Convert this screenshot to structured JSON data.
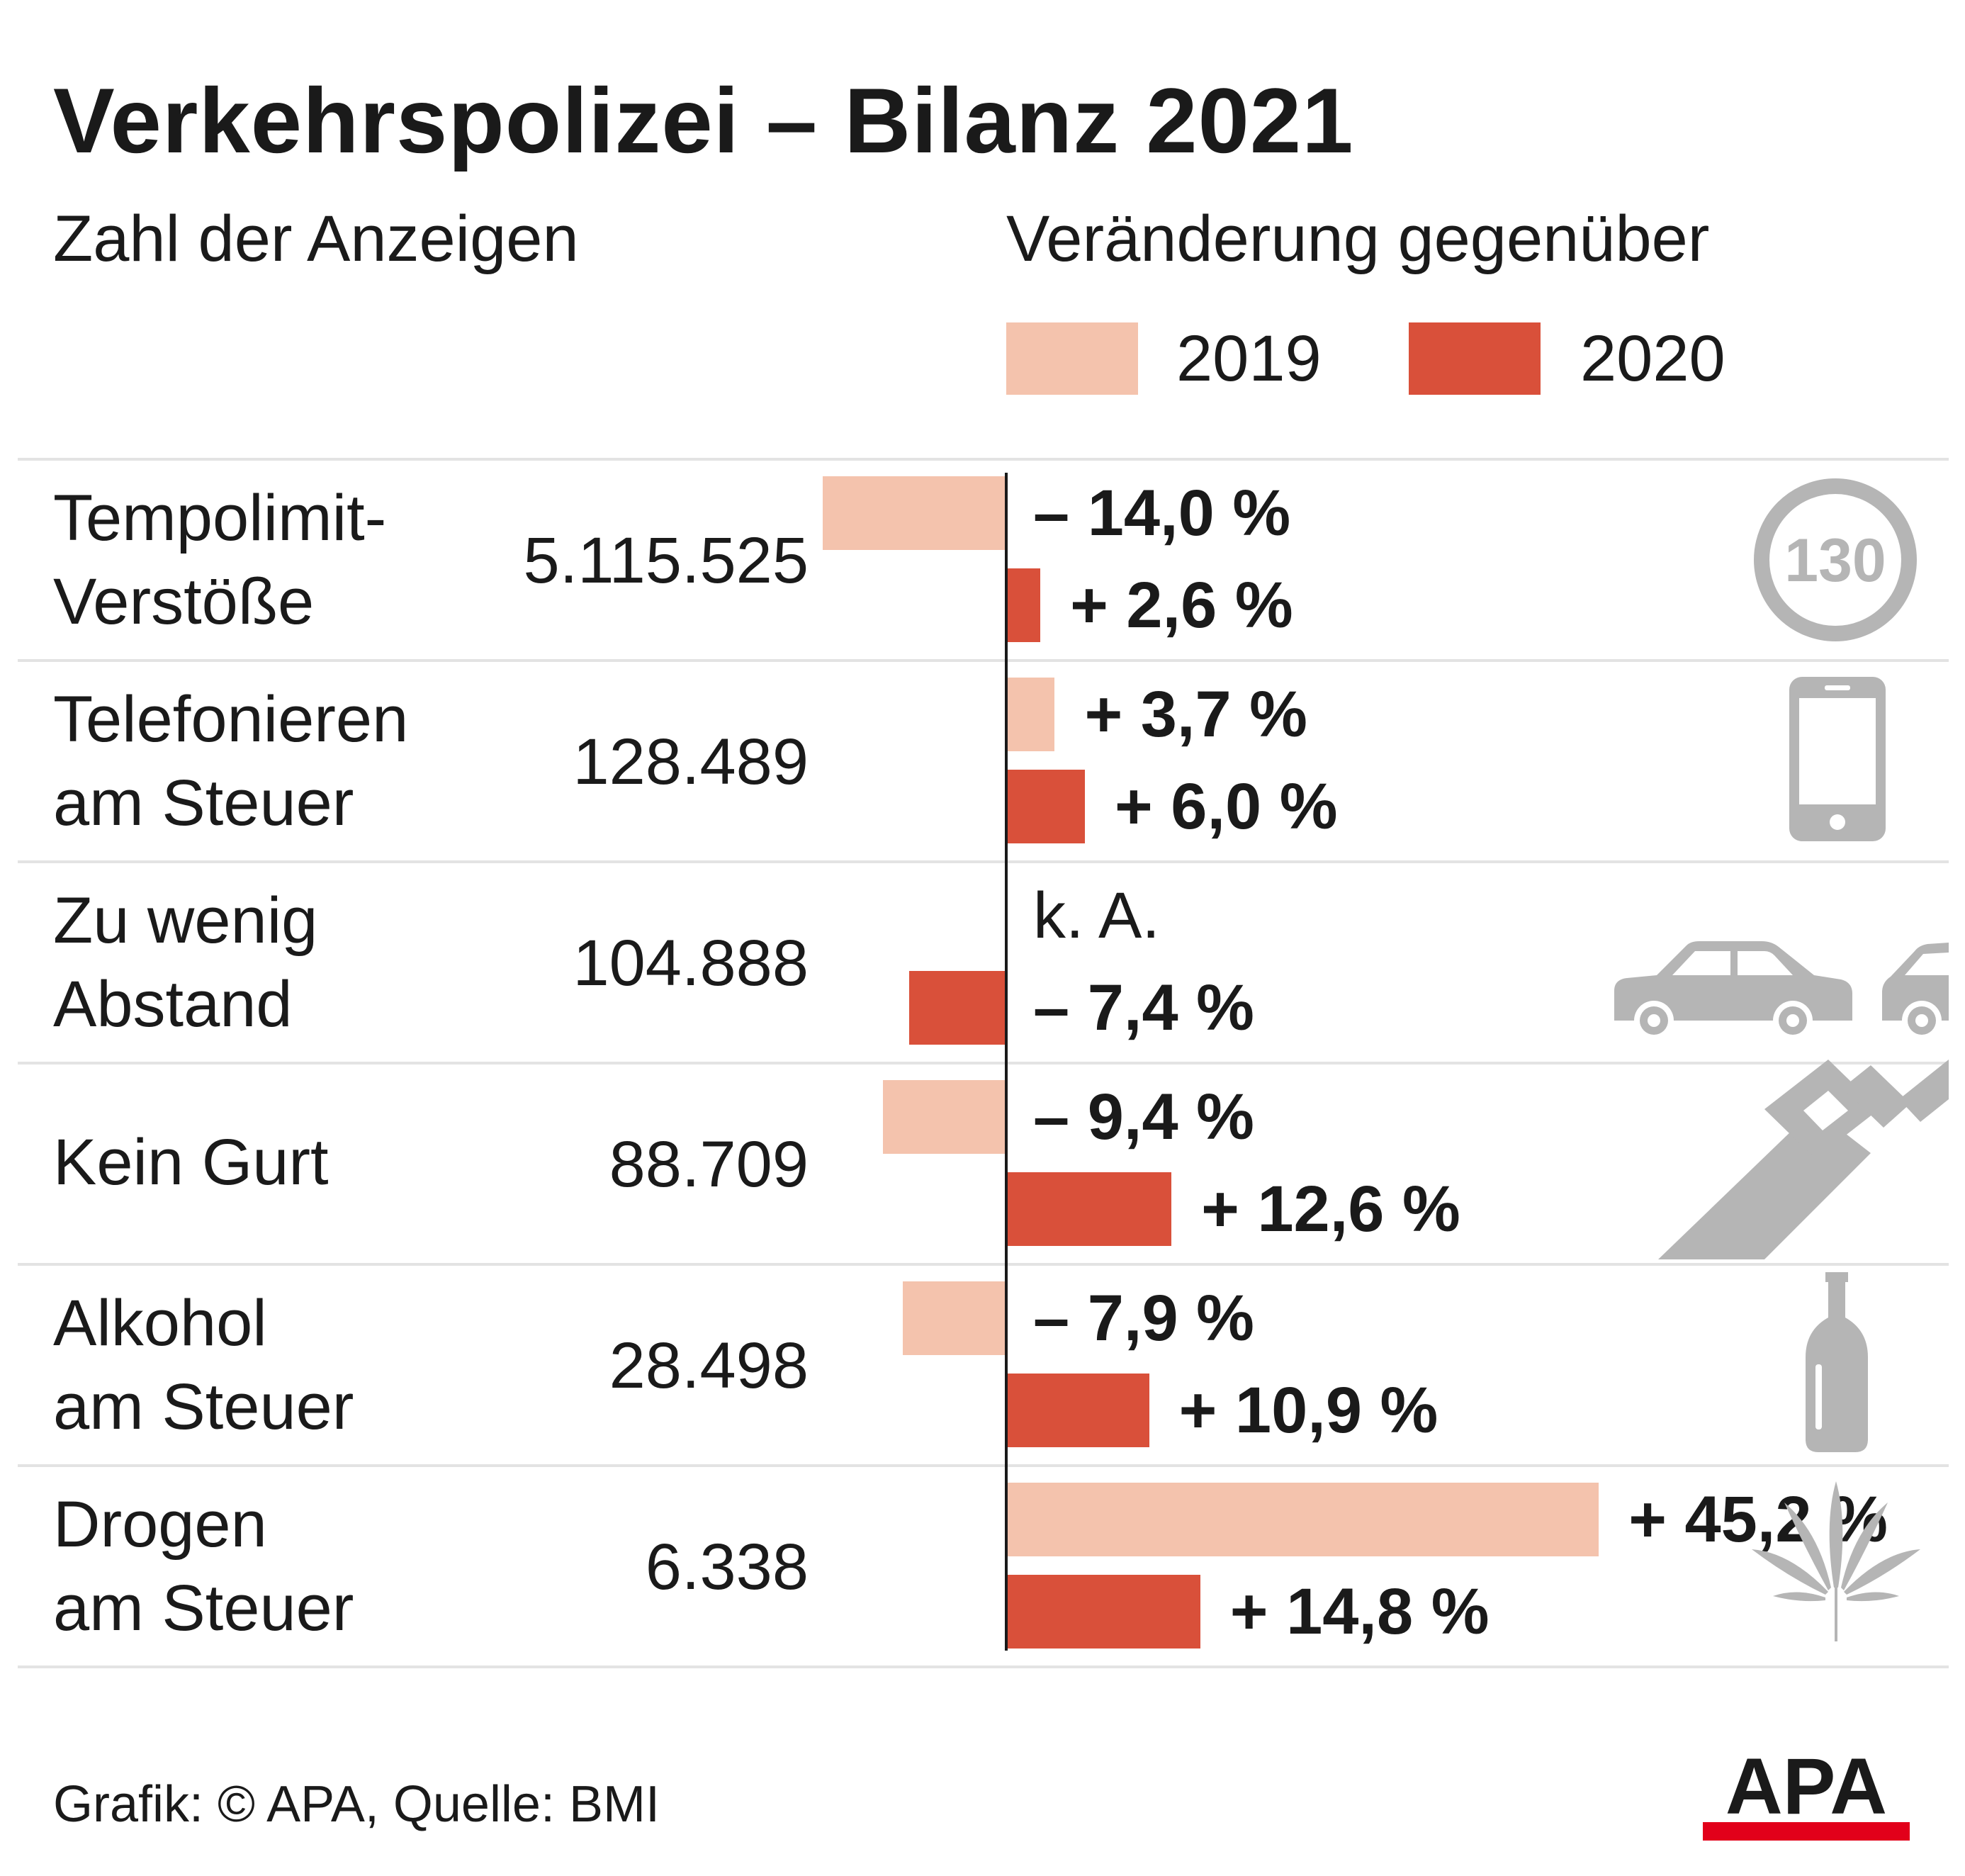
{
  "title": "Verkehrspolizei – Bilanz 2021",
  "subtitle": "Zahl der Anzeigen",
  "change_heading": "Veränderung gegenüber",
  "footer": "Grafik: © APA, Quelle: BMI",
  "logo_text": "APA",
  "colors": {
    "y2019": "#f4c3ad",
    "y2020": "#d9503a",
    "icon": "#b5b5b5",
    "axis": "#1a1a1a",
    "logo_red": "#e2001a"
  },
  "chart_data": {
    "type": "bar",
    "orientation": "horizontal",
    "series": [
      {
        "name": "2019",
        "values": [
          -14.0,
          3.7,
          null,
          -9.4,
          -7.9,
          45.2
        ]
      },
      {
        "name": "2020",
        "values": [
          2.6,
          6.0,
          -7.4,
          12.6,
          10.9,
          14.8
        ]
      }
    ],
    "rows": [
      {
        "category": "Tempolimit-\nVerstöße",
        "count": "5.115.525",
        "icon": "speed-limit-130-icon",
        "icon_text": "130",
        "v2019": -14.0,
        "label2019": "– 14,0 %",
        "v2020": 2.6,
        "label2020": "+ 2,6 %"
      },
      {
        "category": "Telefonieren\nam Steuer",
        "count": "128.489",
        "icon": "smartphone-icon",
        "v2019": 3.7,
        "label2019": "+ 3,7 %",
        "v2020": 6.0,
        "label2020": "+ 6,0 %"
      },
      {
        "category": "Zu wenig\nAbstand",
        "count": "104.888",
        "icon": "cars-icon",
        "v2019": null,
        "label2019": "k. A.",
        "v2020": -7.4,
        "label2020": "– 7,4 %"
      },
      {
        "category": "Kein Gurt",
        "count": "88.709",
        "icon": "seatbelt-icon",
        "v2019": -9.4,
        "label2019": "– 9,4 %",
        "v2020": 12.6,
        "label2020": "+ 12,6 %"
      },
      {
        "category": "Alkohol\nam Steuer",
        "count": "28.498",
        "icon": "bottle-icon",
        "v2019": -7.9,
        "label2019": "– 7,9 %",
        "v2020": 10.9,
        "label2020": "+ 10,9 %"
      },
      {
        "category": "Drogen\nam Steuer",
        "count": "6.338",
        "icon": "cannabis-leaf-icon",
        "v2019": 45.2,
        "label2019": "+ 45,2 %",
        "v2020": 14.8,
        "label2020": "+ 14,8 %"
      }
    ],
    "legend": [
      "2019",
      "2020"
    ],
    "legend_position": "top-right",
    "grid": false
  }
}
